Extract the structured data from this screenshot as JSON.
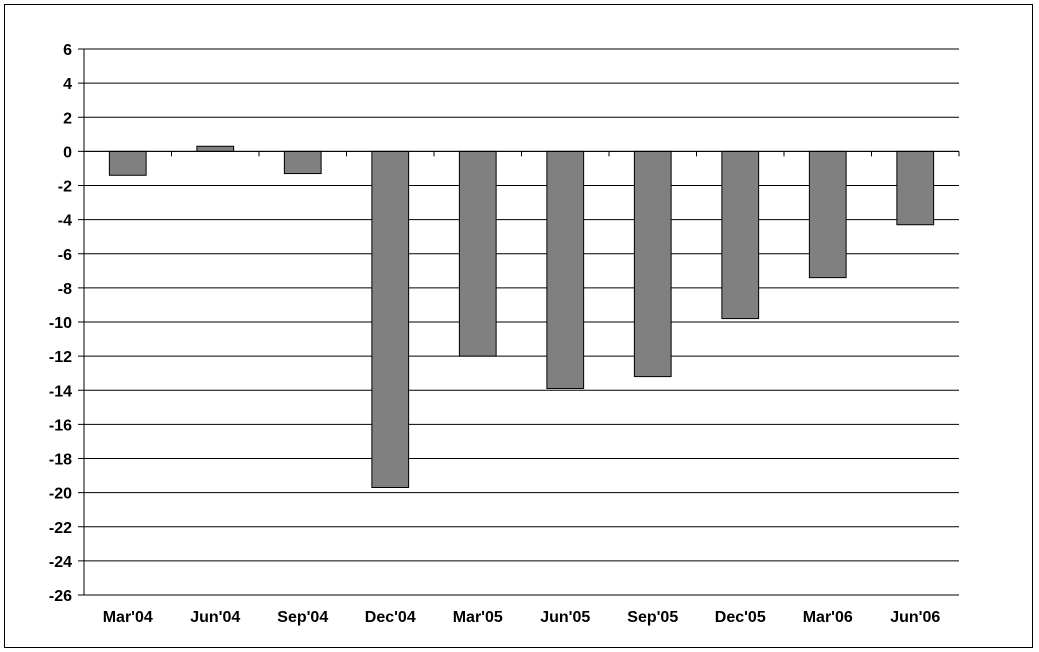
{
  "chart_data": {
    "type": "bar",
    "title": "",
    "xlabel": "",
    "ylabel": "",
    "categories": [
      "Mar'04",
      "Jun'04",
      "Sep'04",
      "Dec'04",
      "Mar'05",
      "Jun'05",
      "Sep'05",
      "Dec'05",
      "Mar'06",
      "Jun'06"
    ],
    "values": [
      -1.4,
      0.3,
      -1.3,
      -19.7,
      -12.0,
      -13.9,
      -13.2,
      -9.8,
      -7.4,
      -4.3
    ],
    "ylim": [
      -26,
      6
    ],
    "yticks": [
      "6",
      "4",
      "2",
      "0",
      "-2",
      "-4",
      "-6",
      "-8",
      "-10",
      "-12",
      "-14",
      "-16",
      "-18",
      "-20",
      "-22",
      "-24",
      "-26"
    ],
    "grid": true,
    "legend": "none",
    "bar_color": "#808080",
    "bar_border_color": "#000000",
    "grid_color": "#000000"
  }
}
